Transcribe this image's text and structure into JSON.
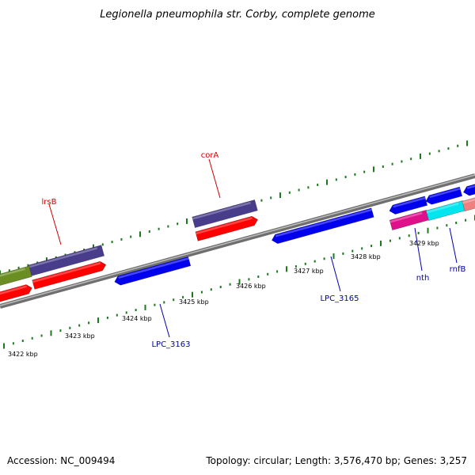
{
  "title": "Legionella pneumophila str. Corby, complete genome",
  "footer": {
    "accession": "Accession: NC_009494",
    "summary": "Topology: circular; Length: 3,576,470 bp; Genes: 3,257"
  },
  "colors": {
    "backbone": "#8c8c8c",
    "tick": "#1c7a1c",
    "blue_label": "#0000aa",
    "red_label": "#cc0000"
  },
  "scale_labels": [
    "3422 kbp",
    "3423 kbp",
    "3424 kbp",
    "3425 kbp",
    "3426 kbp",
    "3427 kbp",
    "3428 kbp",
    "3429 kbp"
  ],
  "gene_labels": [
    {
      "id": "lrsB",
      "text": "lrsB",
      "strand": "forward"
    },
    {
      "id": "corA",
      "text": "corA",
      "strand": "forward"
    },
    {
      "id": "LPC_3163",
      "text": "LPC_3163",
      "strand": "reverse"
    },
    {
      "id": "LPC_3165",
      "text": "LPC_3165",
      "strand": "reverse"
    },
    {
      "id": "nth",
      "text": "nth",
      "strand": "reverse"
    },
    {
      "id": "rnfB",
      "text": "rnfB",
      "strand": "reverse"
    }
  ],
  "features": [
    {
      "id": "olive-feature",
      "color": "#6b8e23"
    },
    {
      "id": "lrsB-feature",
      "color": "#483d8b"
    },
    {
      "id": "lrsB-cds",
      "color": "#ff0000"
    },
    {
      "id": "left-red-cds",
      "color": "#ff0000"
    },
    {
      "id": "corA-feature",
      "color": "#483d8b"
    },
    {
      "id": "corA-cds",
      "color": "#ff0000"
    },
    {
      "id": "LPC_3163-cds",
      "color": "#0000ee"
    },
    {
      "id": "LPC_3165-cds",
      "color": "#0000ee"
    },
    {
      "id": "blue-cds-a",
      "color": "#0000ee"
    },
    {
      "id": "blue-cds-b",
      "color": "#0000ee"
    },
    {
      "id": "blue-cds-c",
      "color": "#0000ee"
    },
    {
      "id": "nth-cds",
      "color": "#e0108a"
    },
    {
      "id": "rnfB-cds",
      "color": "#00e5ee"
    },
    {
      "id": "pink-cds",
      "color": "#f08080"
    }
  ]
}
